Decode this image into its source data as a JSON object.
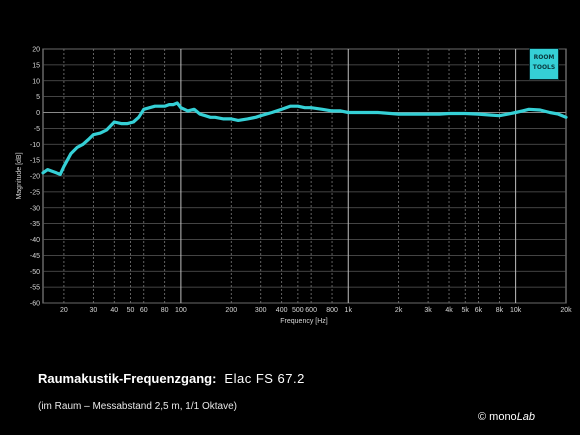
{
  "caption": {
    "title": "Raumakustik-Frequenzgang:",
    "model": "Elac FS 67.2",
    "subtitle": "(im Raum – Messabstand 2,5 m, 1/1 Oktave)",
    "copyright_prefix": "© mono",
    "copyright_suffix": "Lab"
  },
  "logo": {
    "line1": "ROOM",
    "line2": "TOOLS"
  },
  "chart_data": {
    "type": "line",
    "title": "",
    "xlabel": "Frequency [Hz]",
    "ylabel": "Magnitude [dB]",
    "xscale": "log",
    "xlim": [
      15,
      20000
    ],
    "ylim": [
      -60,
      20
    ],
    "grid": true,
    "line_color": "#35d0d6",
    "background_color": "#000000",
    "x_ticks": [
      {
        "value": 20,
        "label": "20"
      },
      {
        "value": 30,
        "label": "30"
      },
      {
        "value": 40,
        "label": "40"
      },
      {
        "value": 50,
        "label": "50"
      },
      {
        "value": 60,
        "label": "60"
      },
      {
        "value": 80,
        "label": "80"
      },
      {
        "value": 100,
        "label": "100"
      },
      {
        "value": 200,
        "label": "200"
      },
      {
        "value": 300,
        "label": "300"
      },
      {
        "value": 400,
        "label": "400"
      },
      {
        "value": 500,
        "label": "500"
      },
      {
        "value": 600,
        "label": "600"
      },
      {
        "value": 800,
        "label": "800"
      },
      {
        "value": 1000,
        "label": "1k"
      },
      {
        "value": 2000,
        "label": "2k"
      },
      {
        "value": 3000,
        "label": "3k"
      },
      {
        "value": 4000,
        "label": "4k"
      },
      {
        "value": 5000,
        "label": "5k"
      },
      {
        "value": 6000,
        "label": "6k"
      },
      {
        "value": 8000,
        "label": "8k"
      },
      {
        "value": 10000,
        "label": "10k"
      },
      {
        "value": 20000,
        "label": "20k"
      }
    ],
    "y_ticks": [
      20,
      15,
      10,
      5,
      0,
      -5,
      -10,
      -15,
      -20,
      -25,
      -30,
      -35,
      -40,
      -45,
      -50,
      -55,
      -60
    ],
    "x": [
      15,
      16,
      17,
      18,
      19,
      20,
      22,
      24,
      26,
      28,
      30,
      33,
      36,
      40,
      44,
      48,
      52,
      56,
      60,
      65,
      70,
      75,
      80,
      85,
      90,
      95,
      100,
      110,
      120,
      130,
      140,
      150,
      160,
      180,
      200,
      220,
      250,
      280,
      300,
      350,
      400,
      450,
      500,
      550,
      600,
      700,
      800,
      900,
      1000,
      1200,
      1500,
      2000,
      2500,
      3000,
      3500,
      4000,
      5000,
      6000,
      7000,
      8000,
      9000,
      10000,
      11000,
      12000,
      14000,
      16000,
      18000,
      20000
    ],
    "y": [
      -19,
      -18,
      -18.5,
      -19,
      -19.5,
      -17,
      -13,
      -11,
      -10,
      -8.5,
      -7,
      -6.5,
      -5.5,
      -3,
      -3.5,
      -3.5,
      -3,
      -1.5,
      1,
      1.5,
      2,
      2,
      2,
      2.5,
      2.5,
      3,
      1.5,
      0.5,
      1,
      -0.5,
      -1,
      -1.5,
      -1.5,
      -2,
      -2,
      -2.5,
      -2,
      -1.5,
      -1,
      0,
      1,
      2,
      2,
      1.5,
      1.5,
      1,
      0.5,
      0.5,
      0,
      0,
      0,
      -0.5,
      -0.5,
      -0.5,
      -0.5,
      -0.3,
      -0.3,
      -0.5,
      -0.8,
      -1,
      -0.5,
      0,
      0.5,
      1,
      0.8,
      0,
      -0.5,
      -1.5
    ]
  }
}
